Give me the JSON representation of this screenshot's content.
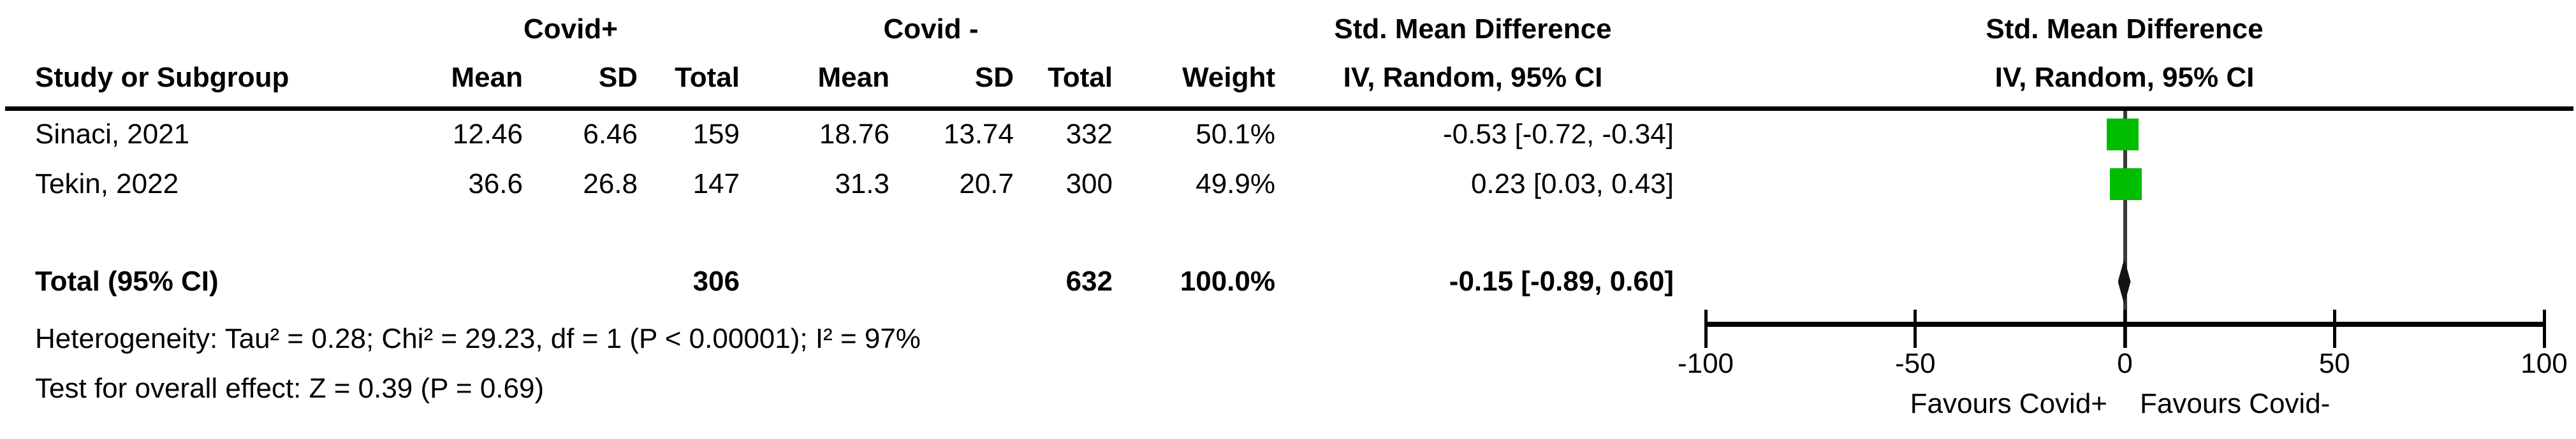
{
  "figure": {
    "group1_header": "Covid+",
    "group2_header": "Covid -",
    "columns": {
      "study": "Study or Subgroup",
      "mean": "Mean",
      "sd": "SD",
      "total": "Total",
      "weight": "Weight",
      "smd_line1": "Std. Mean Difference",
      "smd_line2": "IV, Random, 95% CI"
    },
    "plot_header": {
      "line1": "Std. Mean Difference",
      "line2": "IV, Random, 95% CI"
    },
    "rows": [
      {
        "study": "Sinaci, 2021",
        "mean1": "12.46",
        "sd1": "6.46",
        "total1": "159",
        "mean2": "18.76",
        "sd2": "13.74",
        "total2": "332",
        "weight": "50.1%",
        "ci": "-0.53 [-0.72, -0.34]"
      },
      {
        "study": "Tekin, 2022",
        "mean1": "36.6",
        "sd1": "26.8",
        "total1": "147",
        "mean2": "31.3",
        "sd2": "20.7",
        "total2": "300",
        "weight": "49.9%",
        "ci": "0.23 [0.03, 0.43]"
      }
    ],
    "total_row": {
      "label": "Total (95% CI)",
      "total1": "306",
      "total2": "632",
      "weight": "100.0%",
      "ci": "-0.15 [-0.89, 0.60]"
    },
    "footnotes": {
      "heterogeneity": "Heterogeneity: Tau² = 0.28; Chi² = 29.23, df = 1 (P < 0.00001); I² = 97%",
      "overall_effect": "Test for overall effect: Z = 0.39 (P = 0.69)"
    },
    "favours_left": "Favours Covid+",
    "favours_right": "Favours Covid-"
  },
  "chart_data": {
    "type": "forest",
    "effect_measure": "Std. Mean Difference",
    "method": "IV, Random, 95% CI",
    "studies": [
      {
        "study": "Sinaci, 2021",
        "covid_pos": {
          "mean": 12.46,
          "sd": 6.46,
          "total": 159
        },
        "covid_neg": {
          "mean": 18.76,
          "sd": 13.74,
          "total": 332
        },
        "weight_pct": 50.1,
        "smd": -0.53,
        "ci_low": -0.72,
        "ci_high": -0.34
      },
      {
        "study": "Tekin, 2022",
        "covid_pos": {
          "mean": 36.6,
          "sd": 26.8,
          "total": 147
        },
        "covid_neg": {
          "mean": 31.3,
          "sd": 20.7,
          "total": 300
        },
        "weight_pct": 49.9,
        "smd": 0.23,
        "ci_low": 0.03,
        "ci_high": 0.43
      }
    ],
    "total": {
      "label": "Total (95% CI)",
      "total_pos": 306,
      "total_neg": 632,
      "weight_pct": 100.0,
      "smd": -0.15,
      "ci_low": -0.89,
      "ci_high": 0.6
    },
    "heterogeneity": {
      "tau2": 0.28,
      "chi2": 29.23,
      "df": 1,
      "p": "< 0.00001",
      "i2_pct": 97
    },
    "overall_effect": {
      "z": 0.39,
      "p": 0.69
    },
    "axis": {
      "xlim": [
        -100,
        100
      ],
      "ticks": [
        -100,
        -50,
        0,
        50,
        100
      ],
      "label_left": "Favours Covid+",
      "label_right": "Favours Covid-"
    },
    "marker_color": "#00bd00",
    "legend_position": "none",
    "grid": false
  }
}
